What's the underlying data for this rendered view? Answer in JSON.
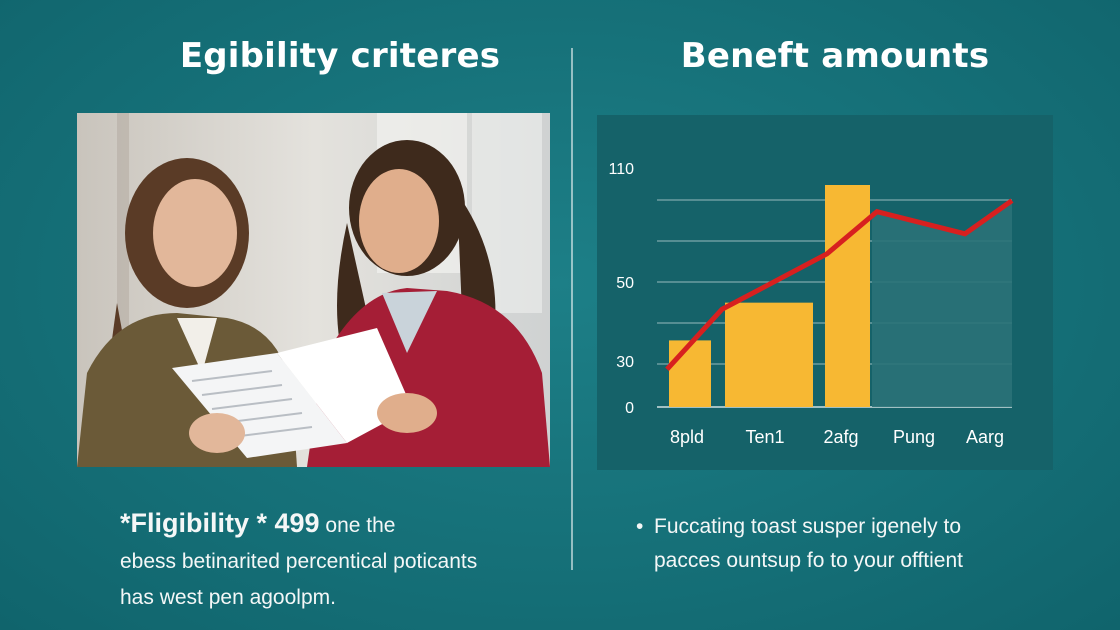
{
  "left": {
    "title": "Egibility criteres",
    "lead": "*Fligibility * 4",
    "lead_num": "99",
    "line1_rest": " one the",
    "line2": "ebess betinarited percentical poticants",
    "line3": "has west pen agoolpm."
  },
  "right": {
    "title": "Beneft amounts",
    "bullet": "•",
    "line1": "Fuccating toast susper igenely to",
    "line2": "pacces ountsup fo to your offtient"
  },
  "chart_data": {
    "type": "bar",
    "categories": [
      "8pld",
      "Ten1",
      "2afg",
      "Pung",
      "Aarg"
    ],
    "values": [
      30,
      43,
      100,
      null,
      null
    ],
    "line_values": [
      29,
      44,
      72,
      93,
      90
    ],
    "y_tick_labels": [
      "0",
      "30",
      "50",
      "110"
    ],
    "colors": {
      "bar": "#f7b833",
      "line": "#d7201f",
      "area": "#2a7278"
    }
  }
}
